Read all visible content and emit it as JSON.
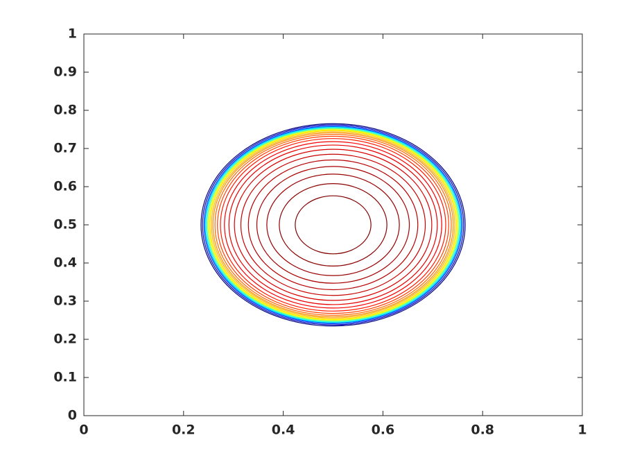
{
  "chart_data": {
    "type": "contour",
    "xlim": [
      0,
      1
    ],
    "ylim": [
      0,
      1
    ],
    "xticks": [
      0,
      0.2,
      0.4,
      0.6,
      0.8,
      1
    ],
    "yticks": [
      0,
      0.1,
      0.2,
      0.3,
      0.4,
      0.5,
      0.6,
      0.7,
      0.8,
      0.9,
      1
    ],
    "center": [
      0.5,
      0.5
    ],
    "radii": [
      0.076,
      0.108,
      0.133,
      0.153,
      0.17,
      0.185,
      0.198,
      0.209,
      0.218,
      0.226,
      0.232,
      0.237,
      0.241,
      0.244,
      0.247,
      0.249,
      0.251,
      0.253,
      0.255,
      0.257,
      0.259,
      0.262,
      0.265
    ],
    "colors": [
      "#800000",
      "#8c0000",
      "#990000",
      "#a80000",
      "#b80000",
      "#c80000",
      "#d80000",
      "#e80000",
      "#f50000",
      "#ff1a00",
      "#ff4000",
      "#ff6600",
      "#ff8c00",
      "#ffb300",
      "#ffd900",
      "#ffff00",
      "#c0ff40",
      "#60ffa0",
      "#00ffff",
      "#00a0ff",
      "#0040ff",
      "#0000c0",
      "#000080"
    ]
  }
}
